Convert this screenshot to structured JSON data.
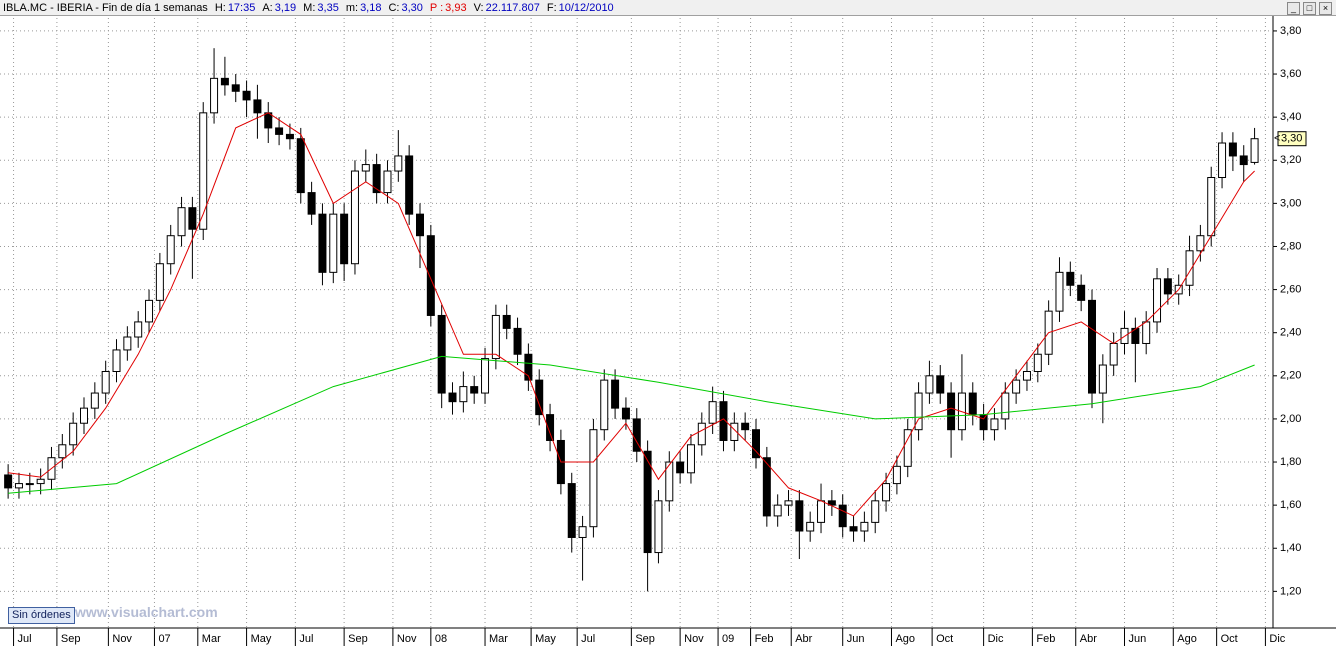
{
  "header": [
    {
      "label": "IBLA.MC - IBERIA - Fin de día 1 semanas",
      "value": null
    },
    {
      "label": "H:",
      "value": "17:35"
    },
    {
      "label": "A:",
      "value": "3,19"
    },
    {
      "label": "M:",
      "value": "3,35"
    },
    {
      "label": "m:",
      "value": "3,18"
    },
    {
      "label": "C:",
      "value": "3,30"
    },
    {
      "label": "P :",
      "value": "3,93"
    },
    {
      "label": "V:",
      "value": "22.117.807"
    },
    {
      "label": "F:",
      "value": "10/12/2010"
    }
  ],
  "button": "Sin órdenes",
  "watermark": "www.visualchart.com",
  "chart_data": {
    "type": "candlestick",
    "xlim": [
      -1.5,
      233.4
    ],
    "ylim": [
      1.03,
      3.86
    ],
    "grid": true,
    "up_color": "#ffffff",
    "down_color": "#000000",
    "yticks": [
      {
        "value": 1.2,
        "label": "1,20"
      },
      {
        "value": 1.4,
        "label": "1,40"
      },
      {
        "value": 1.6,
        "label": "1,60"
      },
      {
        "value": 1.8,
        "label": "1,80"
      },
      {
        "value": 2.0,
        "label": "2,00"
      },
      {
        "value": 2.2,
        "label": "2,20"
      },
      {
        "value": 2.4,
        "label": "2,40"
      },
      {
        "value": 2.6,
        "label": "2,60"
      },
      {
        "value": 2.8,
        "label": "2,80"
      },
      {
        "value": 3.0,
        "label": "3,00"
      },
      {
        "value": 3.2,
        "label": "3,20"
      },
      {
        "value": 3.4,
        "label": "3,40"
      },
      {
        "value": 3.6,
        "label": "3,60"
      },
      {
        "value": 3.8,
        "label": "3,80"
      }
    ],
    "xticks": [
      {
        "value": 1,
        "label": "Jul"
      },
      {
        "value": 9,
        "label": "Sep"
      },
      {
        "value": 18.5,
        "label": "Nov"
      },
      {
        "value": 27,
        "label": "07"
      },
      {
        "value": 35,
        "label": "Mar"
      },
      {
        "value": 44,
        "label": "May"
      },
      {
        "value": 53,
        "label": "Jul"
      },
      {
        "value": 62,
        "label": "Sep"
      },
      {
        "value": 71,
        "label": "Nov"
      },
      {
        "value": 78,
        "label": "08"
      },
      {
        "value": 88,
        "label": "Mar"
      },
      {
        "value": 96.5,
        "label": "May"
      },
      {
        "value": 105,
        "label": "Jul"
      },
      {
        "value": 115,
        "label": "Sep"
      },
      {
        "value": 124,
        "label": "Nov"
      },
      {
        "value": 131,
        "label": "09"
      },
      {
        "value": 137,
        "label": "Feb"
      },
      {
        "value": 144.5,
        "label": "Abr"
      },
      {
        "value": 154,
        "label": "Jun"
      },
      {
        "value": 163,
        "label": "Ago"
      },
      {
        "value": 170.5,
        "label": "Oct"
      },
      {
        "value": 180,
        "label": "Dic"
      },
      {
        "value": 189,
        "label": "Feb"
      },
      {
        "value": 197,
        "label": "Abr"
      },
      {
        "value": 206,
        "label": "Jun"
      },
      {
        "value": 215,
        "label": "Ago"
      },
      {
        "value": 223,
        "label": "Oct"
      },
      {
        "value": 232,
        "label": "Dic"
      }
    ],
    "x": [
      0,
      2,
      4,
      6,
      8,
      10,
      12,
      14,
      16,
      18,
      20,
      22,
      24,
      26,
      28,
      30,
      32,
      34,
      36,
      38,
      40,
      42,
      44,
      46,
      48,
      50,
      52,
      54,
      56,
      58,
      60,
      62,
      64,
      66,
      68,
      70,
      72,
      74,
      76,
      78,
      80,
      82,
      84,
      86,
      88,
      90,
      92,
      94,
      96,
      98,
      100,
      102,
      104,
      106,
      108,
      110,
      112,
      114,
      116,
      118,
      120,
      122,
      124,
      126,
      128,
      130,
      132,
      134,
      136,
      138,
      140,
      142,
      144,
      146,
      148,
      150,
      152,
      154,
      156,
      158,
      160,
      162,
      164,
      166,
      168,
      170,
      172,
      174,
      176,
      178,
      180,
      182,
      184,
      186,
      188,
      190,
      192,
      194,
      196,
      198,
      200,
      202,
      204,
      206,
      208,
      210,
      212,
      214,
      216,
      218,
      220,
      222,
      224,
      226,
      228,
      230
    ],
    "open": [
      1.74,
      1.68,
      1.7,
      1.7,
      1.72,
      1.82,
      1.88,
      1.98,
      2.05,
      2.12,
      2.22,
      2.32,
      2.38,
      2.45,
      2.55,
      2.72,
      2.85,
      2.98,
      2.88,
      3.42,
      3.58,
      3.55,
      3.52,
      3.48,
      3.42,
      3.35,
      3.32,
      3.3,
      3.05,
      2.95,
      2.68,
      2.95,
      2.72,
      3.15,
      3.18,
      3.05,
      3.15,
      3.22,
      2.95,
      2.85,
      2.48,
      2.12,
      2.08,
      2.15,
      2.12,
      2.28,
      2.48,
      2.42,
      2.3,
      2.18,
      2.02,
      1.9,
      1.7,
      1.45,
      1.5,
      1.95,
      2.18,
      2.05,
      2.0,
      1.85,
      1.38,
      1.62,
      1.8,
      1.75,
      1.88,
      1.98,
      2.08,
      1.9,
      1.98,
      1.95,
      1.82,
      1.55,
      1.6,
      1.62,
      1.48,
      1.52,
      1.62,
      1.6,
      1.5,
      1.48,
      1.52,
      1.62,
      1.7,
      1.78,
      1.95,
      2.12,
      2.2,
      2.12,
      1.95,
      2.12,
      2.02,
      1.95,
      2.0,
      2.12,
      2.18,
      2.22,
      2.3,
      2.5,
      2.68,
      2.62,
      2.55,
      2.12,
      2.25,
      2.35,
      2.42,
      2.35,
      2.45,
      2.65,
      2.58,
      2.62,
      2.78,
      2.85,
      3.12,
      3.28,
      3.22,
      3.19
    ],
    "high": [
      1.79,
      1.75,
      1.75,
      1.77,
      1.87,
      1.93,
      2.03,
      2.1,
      2.17,
      2.27,
      2.37,
      2.43,
      2.5,
      2.6,
      2.77,
      2.9,
      3.03,
      3.03,
      3.47,
      3.72,
      3.68,
      3.6,
      3.57,
      3.55,
      3.47,
      3.4,
      3.37,
      3.35,
      3.1,
      3.0,
      3.0,
      3.0,
      3.2,
      3.25,
      3.23,
      3.2,
      3.34,
      3.27,
      3.0,
      2.9,
      2.53,
      2.17,
      2.22,
      2.2,
      2.33,
      2.53,
      2.53,
      2.47,
      2.35,
      2.23,
      2.07,
      1.95,
      1.75,
      1.55,
      2.0,
      2.23,
      2.23,
      2.1,
      2.05,
      1.9,
      1.67,
      1.85,
      1.85,
      1.93,
      2.03,
      2.15,
      2.13,
      2.03,
      2.03,
      2.0,
      1.87,
      1.65,
      1.67,
      1.67,
      1.57,
      1.7,
      1.67,
      1.65,
      1.55,
      1.57,
      1.67,
      1.75,
      1.83,
      2.0,
      2.17,
      2.27,
      2.25,
      2.17,
      2.3,
      2.17,
      2.07,
      2.05,
      2.17,
      2.23,
      2.27,
      2.35,
      2.55,
      2.75,
      2.73,
      2.67,
      2.6,
      2.3,
      2.4,
      2.5,
      2.47,
      2.5,
      2.7,
      2.7,
      2.67,
      2.85,
      2.9,
      3.17,
      3.33,
      3.33,
      3.27,
      3.35
    ],
    "low": [
      1.63,
      1.63,
      1.65,
      1.65,
      1.67,
      1.77,
      1.83,
      1.93,
      2.0,
      2.07,
      2.17,
      2.27,
      2.33,
      2.4,
      2.5,
      2.67,
      2.8,
      2.65,
      2.83,
      3.37,
      3.5,
      3.47,
      3.4,
      3.3,
      3.28,
      3.27,
      3.25,
      3.0,
      2.9,
      2.62,
      2.63,
      2.64,
      2.67,
      3.1,
      3.0,
      3.0,
      3.1,
      2.9,
      2.7,
      2.43,
      2.05,
      2.02,
      2.03,
      2.07,
      2.07,
      2.23,
      2.37,
      2.25,
      2.13,
      1.97,
      1.85,
      1.65,
      1.38,
      1.25,
      1.45,
      1.9,
      2.0,
      1.95,
      1.8,
      1.2,
      1.33,
      1.57,
      1.7,
      1.7,
      1.83,
      1.93,
      1.85,
      1.85,
      1.9,
      1.77,
      1.5,
      1.5,
      1.55,
      1.35,
      1.43,
      1.47,
      1.55,
      1.45,
      1.43,
      1.43,
      1.47,
      1.57,
      1.65,
      1.73,
      1.9,
      2.07,
      2.07,
      1.82,
      1.9,
      1.97,
      1.9,
      1.9,
      1.95,
      2.07,
      2.13,
      2.17,
      2.25,
      2.45,
      2.57,
      2.5,
      2.05,
      1.98,
      2.2,
      2.3,
      2.17,
      2.3,
      2.4,
      2.53,
      2.53,
      2.57,
      2.73,
      2.8,
      3.07,
      3.15,
      3.1,
      3.18
    ],
    "close": [
      1.68,
      1.7,
      1.7,
      1.72,
      1.82,
      1.88,
      1.98,
      2.05,
      2.12,
      2.22,
      2.32,
      2.38,
      2.45,
      2.55,
      2.72,
      2.85,
      2.98,
      2.88,
      3.42,
      3.58,
      3.55,
      3.52,
      3.48,
      3.42,
      3.35,
      3.32,
      3.3,
      3.05,
      2.95,
      2.68,
      2.95,
      2.72,
      3.15,
      3.18,
      3.05,
      3.15,
      3.22,
      2.95,
      2.85,
      2.48,
      2.12,
      2.08,
      2.15,
      2.12,
      2.28,
      2.48,
      2.42,
      2.3,
      2.18,
      2.02,
      1.9,
      1.7,
      1.45,
      1.5,
      1.95,
      2.18,
      2.05,
      2.0,
      1.85,
      1.38,
      1.62,
      1.8,
      1.75,
      1.88,
      1.98,
      2.08,
      1.9,
      1.98,
      1.95,
      1.82,
      1.55,
      1.6,
      1.62,
      1.48,
      1.52,
      1.62,
      1.6,
      1.5,
      1.48,
      1.52,
      1.62,
      1.7,
      1.78,
      1.95,
      2.12,
      2.2,
      2.12,
      1.95,
      2.12,
      2.02,
      1.95,
      2.0,
      2.12,
      2.18,
      2.22,
      2.3,
      2.5,
      2.68,
      2.62,
      2.55,
      2.12,
      2.25,
      2.35,
      2.42,
      2.35,
      2.45,
      2.65,
      2.58,
      2.62,
      2.78,
      2.85,
      3.12,
      3.28,
      3.22,
      3.18,
      3.3
    ],
    "lines": [
      {
        "color": "#e00000",
        "x": [
          0,
          6,
          12,
          18,
          24,
          30,
          36,
          42,
          48,
          54,
          60,
          66,
          72,
          78,
          84,
          90,
          96,
          102,
          108,
          114,
          120,
          126,
          132,
          138,
          144,
          150,
          156,
          162,
          168,
          174,
          180,
          186,
          192,
          198,
          204,
          210,
          216,
          222,
          228,
          230
        ],
        "values": [
          1.75,
          1.73,
          1.85,
          2.05,
          2.3,
          2.6,
          2.95,
          3.35,
          3.42,
          3.32,
          3.0,
          3.1,
          3.0,
          2.65,
          2.3,
          2.3,
          2.2,
          1.8,
          1.8,
          1.98,
          1.72,
          1.92,
          2.0,
          1.85,
          1.68,
          1.62,
          1.55,
          1.72,
          2.0,
          2.05,
          2.0,
          2.2,
          2.4,
          2.45,
          2.35,
          2.45,
          2.6,
          2.85,
          3.1,
          3.15
        ]
      },
      {
        "color": "#00cc00",
        "x": [
          0,
          20,
          40,
          60,
          80,
          100,
          120,
          140,
          160,
          180,
          200,
          220,
          230
        ],
        "values": [
          1.655,
          1.7,
          1.93,
          2.15,
          2.29,
          2.25,
          2.17,
          2.08,
          2.0,
          2.02,
          2.07,
          2.15,
          2.25
        ]
      }
    ],
    "last_price": {
      "value": 3.3,
      "label": "3,30"
    }
  }
}
